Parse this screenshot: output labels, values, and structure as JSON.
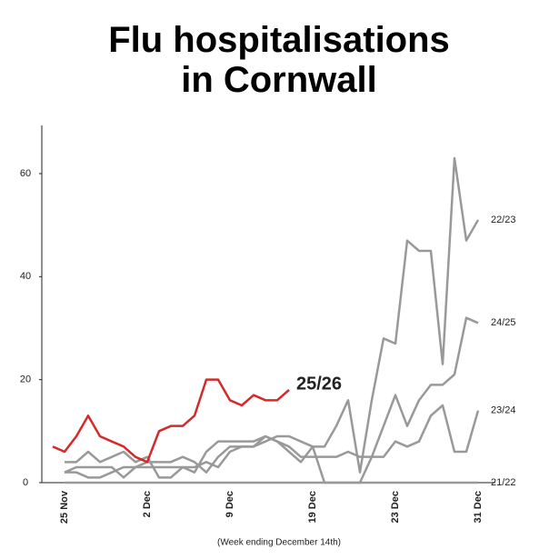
{
  "chart_data": {
    "type": "line",
    "title": "Flu hospitalisations in Cornwall",
    "note": "(Week ending December 14th)",
    "categories": [
      null,
      "25 Nov",
      null,
      null,
      null,
      null,
      null,
      null,
      "2 Dec",
      null,
      null,
      null,
      null,
      null,
      null,
      "9 Dec",
      null,
      null,
      null,
      null,
      null,
      null,
      "19 Dec",
      null,
      null,
      null,
      null,
      null,
      null,
      "23 Dec",
      null,
      null,
      null,
      null,
      null,
      null,
      "31 Dec"
    ],
    "ylim": [
      0,
      70
    ],
    "yticks": [
      0,
      20,
      40,
      60
    ],
    "series": [
      {
        "name": "21/22",
        "color": "#999999",
        "values": [
          null,
          0,
          0,
          0,
          0,
          0,
          0,
          0,
          0,
          0,
          0,
          0,
          0,
          0,
          0,
          0,
          0,
          0,
          0,
          0,
          0,
          0,
          0,
          0,
          0,
          0,
          0,
          0,
          0,
          0,
          0,
          0,
          0,
          0,
          0,
          0,
          0
        ]
      },
      {
        "name": "23/24",
        "color": "#999999",
        "values": [
          null,
          2,
          3,
          3,
          3,
          3,
          1,
          3,
          4,
          4,
          4,
          5,
          4,
          2,
          5,
          7,
          7,
          7,
          9,
          8,
          6,
          4,
          7,
          0,
          0,
          0,
          0,
          5,
          5,
          8,
          7,
          8,
          13,
          15,
          6,
          6,
          14
        ]
      },
      {
        "name": "24/25",
        "color": "#999999",
        "values": [
          null,
          4,
          4,
          6,
          4,
          5,
          6,
          4,
          5,
          1,
          1,
          3,
          2,
          6,
          8,
          8,
          8,
          8,
          9,
          8,
          7,
          5,
          5,
          5,
          5,
          6,
          5,
          5,
          11,
          17,
          11,
          16,
          19,
          19,
          21,
          32,
          31
        ]
      },
      {
        "name": "22/23",
        "color": "#999999",
        "values": [
          null,
          2,
          2,
          1,
          1,
          2,
          3,
          3,
          3,
          3,
          3,
          3,
          3,
          4,
          3,
          6,
          7,
          7,
          8,
          9,
          9,
          8,
          7,
          7,
          11,
          16,
          2,
          16,
          28,
          27,
          47,
          45,
          45,
          23,
          63,
          47,
          51
        ]
      },
      {
        "name": "25/26",
        "color": "#d42a2a",
        "values": [
          7,
          6,
          9,
          13,
          9,
          8,
          7,
          5,
          4,
          10,
          11,
          11,
          13,
          20,
          20,
          16,
          15,
          17,
          16,
          16,
          18,
          null,
          null,
          null,
          null,
          null,
          null,
          null,
          null,
          null,
          null,
          null,
          null,
          null,
          null,
          null,
          null
        ]
      }
    ]
  }
}
